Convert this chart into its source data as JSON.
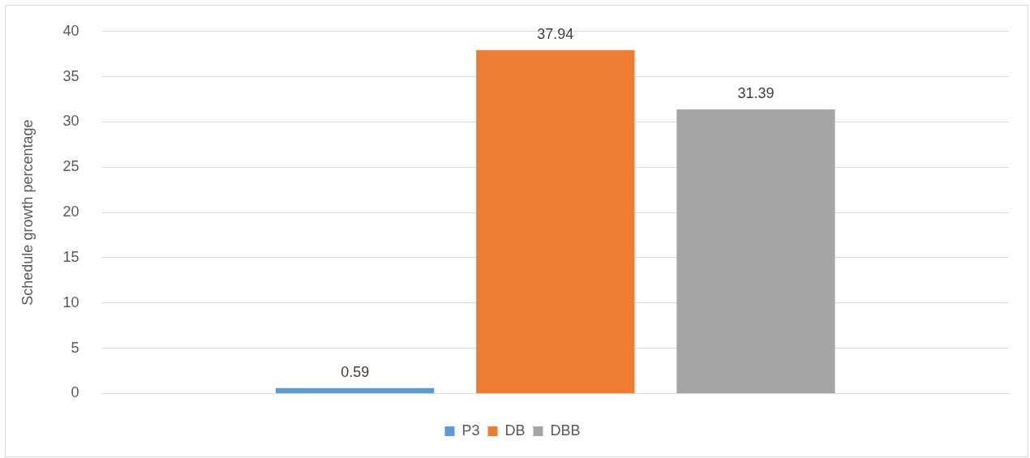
{
  "chart_data": {
    "type": "bar",
    "ylabel": "Schedule growth percentage",
    "categories": [
      null
    ],
    "series": [
      {
        "name": "P3",
        "color": "#5b9bd5",
        "values": [
          0.59
        ]
      },
      {
        "name": "DB",
        "color": "#ed7d31",
        "values": [
          37.94
        ]
      },
      {
        "name": "DBB",
        "color": "#a5a5a5",
        "values": [
          31.39
        ]
      }
    ],
    "ylim": [
      0,
      40
    ],
    "yticks": [
      0,
      5,
      10,
      15,
      20,
      25,
      30,
      35,
      40
    ],
    "grid": "y",
    "legend": "bottom",
    "data_labels": true
  }
}
